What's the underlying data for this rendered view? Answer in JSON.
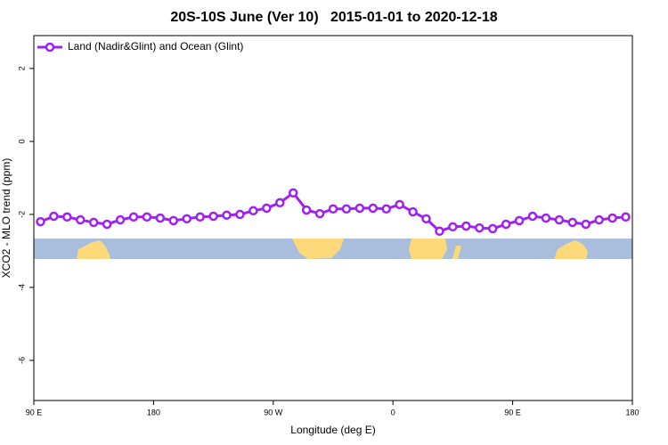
{
  "chart_data": {
    "type": "line",
    "title": "20S-10S June (Ver 10)   2015-01-01 to 2020-12-18",
    "x_label": "Longitude (deg E)",
    "y_label": "XCO2 - MLO trend (ppm)",
    "x": [
      95,
      105,
      115,
      125,
      135,
      145,
      155,
      165,
      175,
      185,
      195,
      205,
      215,
      225,
      235,
      245,
      255,
      265,
      275,
      285,
      295,
      305,
      315,
      325,
      335,
      345,
      355,
      365,
      375,
      385,
      395,
      405,
      415,
      425,
      435,
      445,
      455,
      465,
      475,
      485,
      495,
      505,
      515,
      525,
      535
    ],
    "series": [
      {
        "name": "Land (Nadir&Glint) and Ocean (Glint)",
        "color": "#a020f0",
        "values": [
          -2.2,
          -2.05,
          -2.07,
          -2.15,
          -2.22,
          -2.27,
          -2.15,
          -2.07,
          -2.07,
          -2.1,
          -2.17,
          -2.12,
          -2.07,
          -2.05,
          -2.02,
          -2.0,
          -1.9,
          -1.83,
          -1.68,
          -1.41,
          -1.88,
          -1.98,
          -1.85,
          -1.85,
          -1.83,
          -1.83,
          -1.85,
          -1.73,
          -1.93,
          -2.12,
          -2.46,
          -2.34,
          -2.32,
          -2.37,
          -2.39,
          -2.27,
          -2.17,
          -2.05,
          -2.1,
          -2.15,
          -2.22,
          -2.27,
          -2.15,
          -2.1,
          -2.07
        ]
      }
    ],
    "xlim": [
      90,
      540
    ],
    "xticks": [
      {
        "value": 90,
        "label": "90 E"
      },
      180,
      {
        "value": 270,
        "label": "90 W"
      },
      {
        "value": 360,
        "label": "0"
      },
      {
        "value": 450,
        "label": "90 E"
      },
      {
        "value": 540,
        "label": "180"
      }
    ],
    "ylim": [
      -7.1,
      2.9
    ],
    "yticks": [
      2,
      0,
      -2,
      -4,
      -6
    ],
    "grid": false
  }
}
